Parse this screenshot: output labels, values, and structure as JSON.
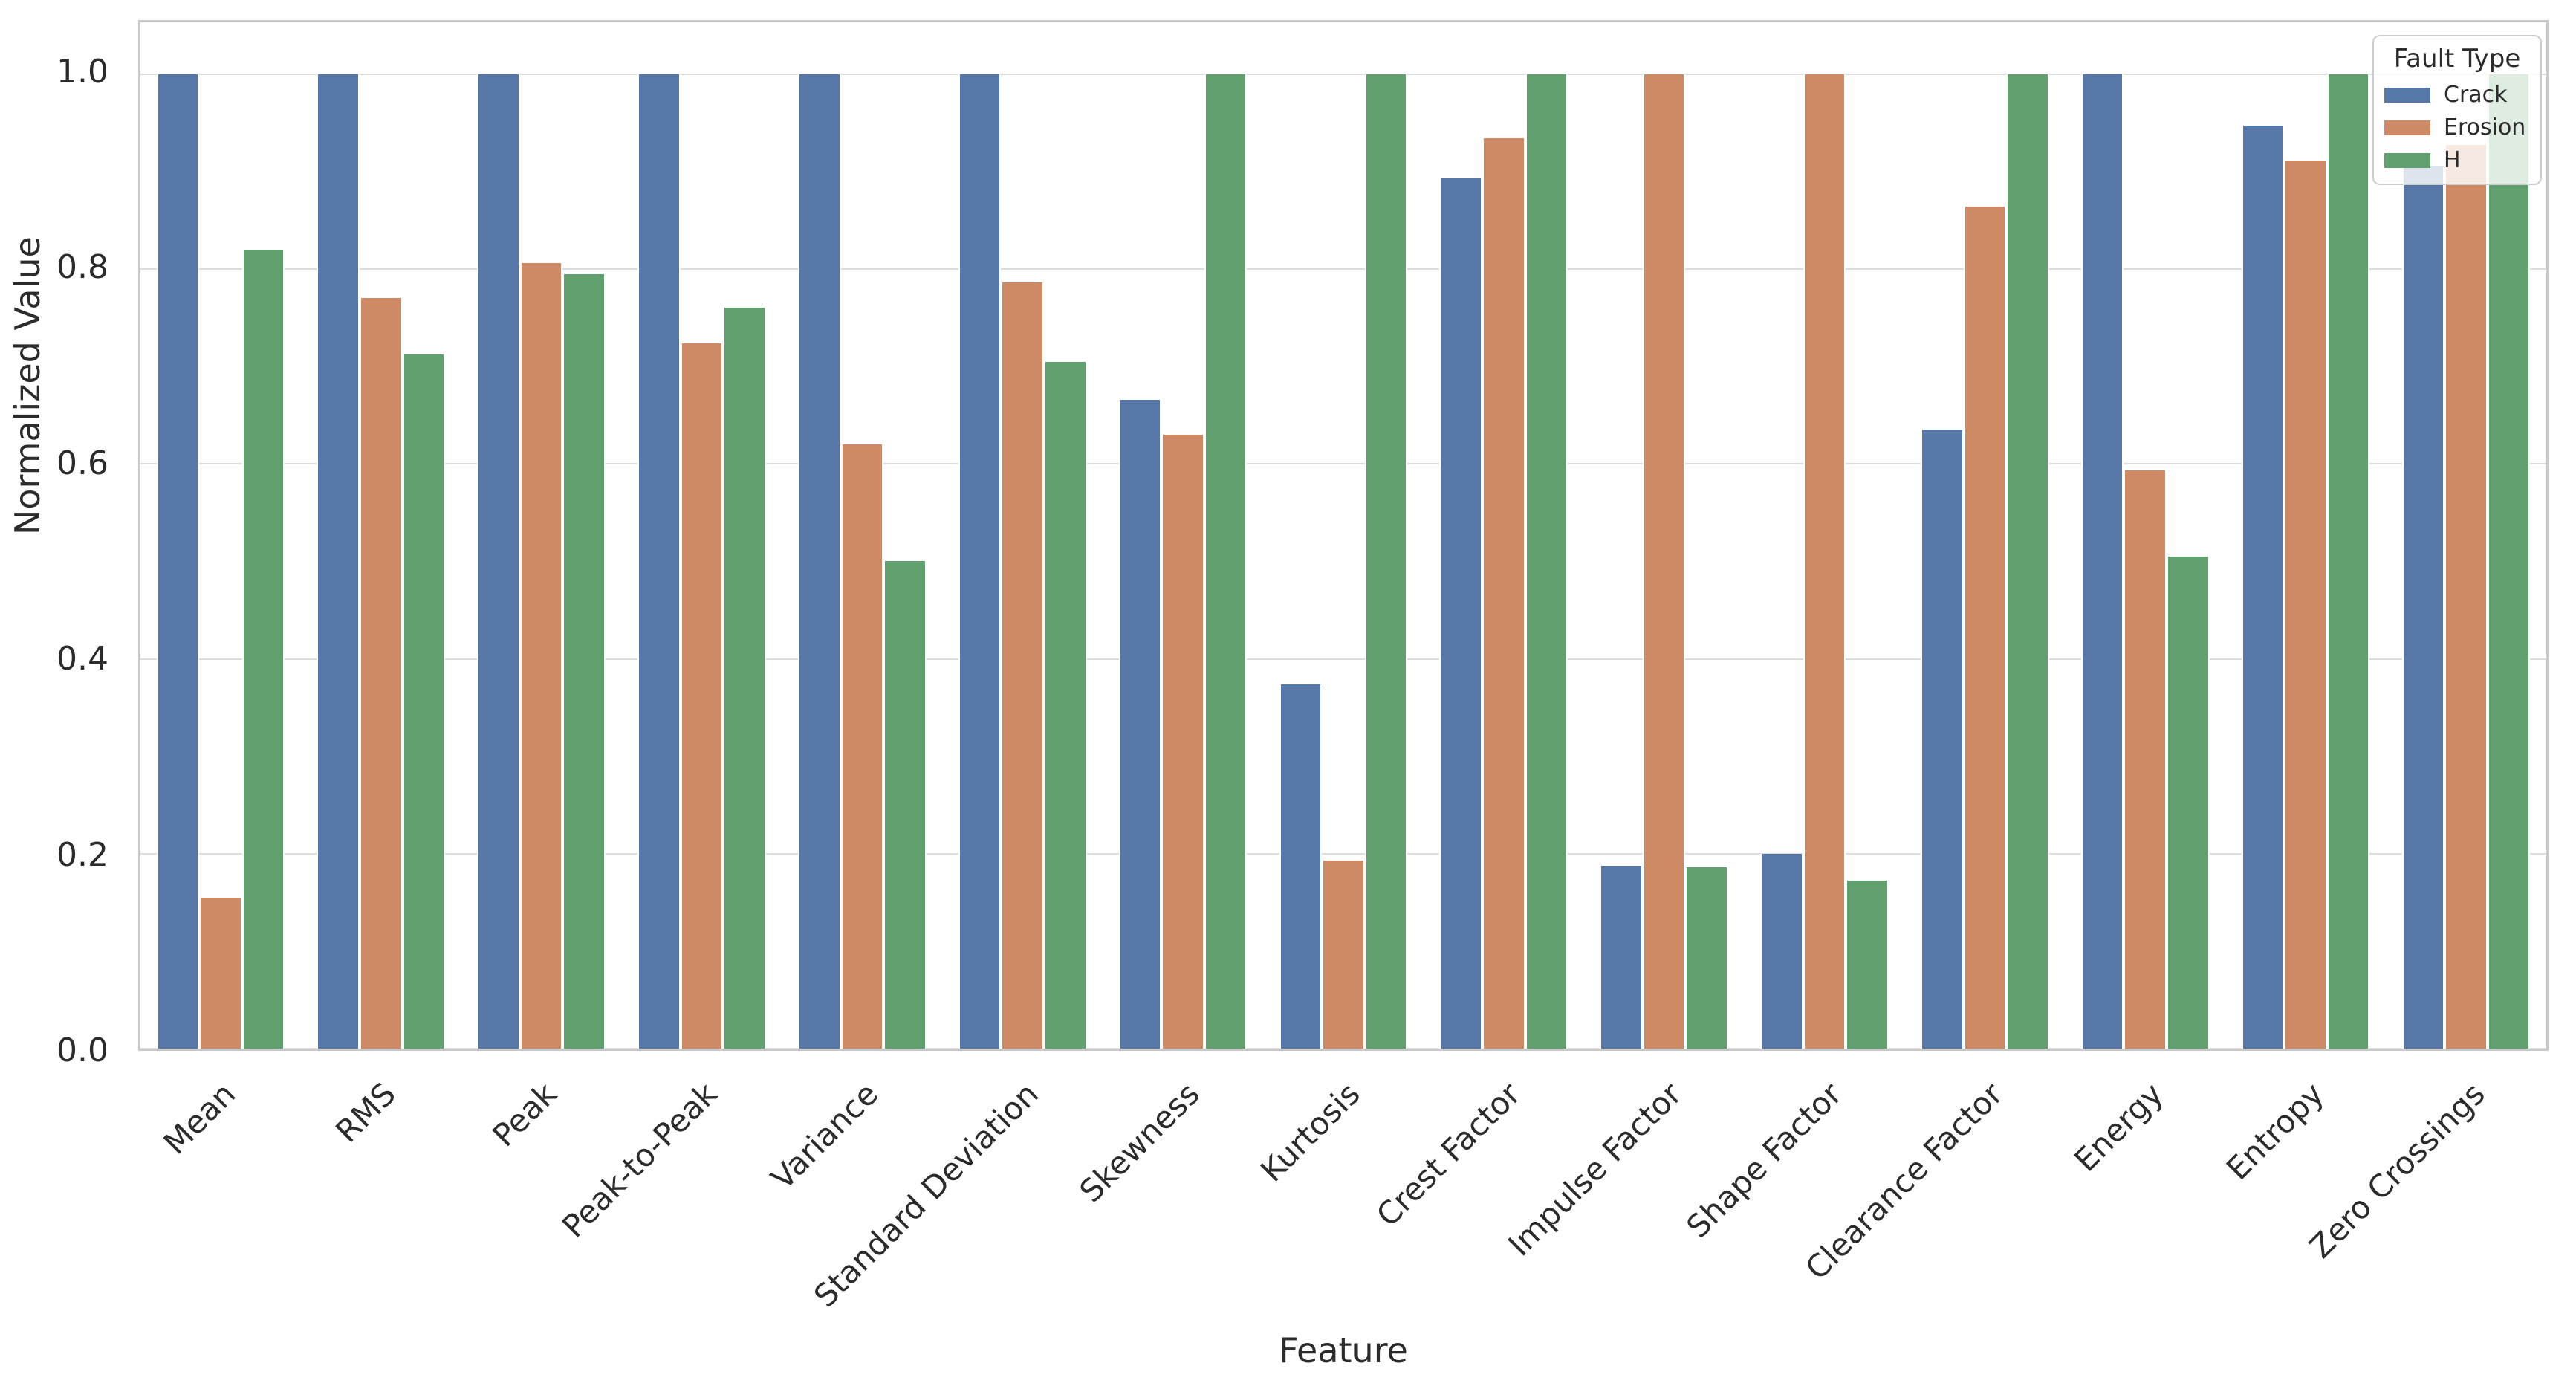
{
  "figure": {
    "background": "#ffffff",
    "text_color": "#2b2b2b",
    "grid_color": "#dcdcdc",
    "spine_color": "#c9c9c9"
  },
  "chart_data": {
    "type": "bar",
    "title": "",
    "xlabel": "Feature",
    "ylabel": "Normalized Value",
    "ylim": [
      0,
      1.0532
    ],
    "yticks": [
      0.0,
      0.2,
      0.4,
      0.6,
      0.8,
      1.0
    ],
    "ytick_labels": [
      "0.0",
      "0.2",
      "0.4",
      "0.6",
      "0.8",
      "1.0"
    ],
    "grid": "horizontal",
    "legend": {
      "title": "Fault Type",
      "position": "upper-right"
    },
    "categories": [
      "Mean",
      "RMS",
      "Peak",
      "Peak-to-Peak",
      "Variance",
      "Standard Deviation",
      "Skewness",
      "Kurtosis",
      "Crest Factor",
      "Impulse Factor",
      "Shape Factor",
      "Clearance Factor",
      "Energy",
      "Entropy",
      "Zero Crossings"
    ],
    "series": [
      {
        "name": "Crack",
        "color": "#5777A8",
        "values": [
          1.0,
          1.0,
          1.0,
          1.0,
          1.0,
          1.0,
          0.666,
          0.374,
          0.893,
          0.188,
          0.2,
          0.635,
          1.0,
          0.947,
          0.905
        ]
      },
      {
        "name": "Erosion",
        "color": "#CD8A64",
        "values": [
          0.155,
          0.77,
          0.806,
          0.724,
          0.62,
          0.786,
          0.63,
          0.193,
          0.934,
          1.0,
          1.0,
          0.864,
          0.593,
          0.911,
          0.927
        ]
      },
      {
        "name": "H",
        "color": "#5FA06E",
        "values": [
          0.82,
          0.712,
          0.795,
          0.76,
          0.5,
          0.705,
          1.0,
          1.0,
          1.0,
          0.186,
          0.172,
          1.0,
          0.505,
          1.0,
          1.0
        ]
      }
    ]
  }
}
